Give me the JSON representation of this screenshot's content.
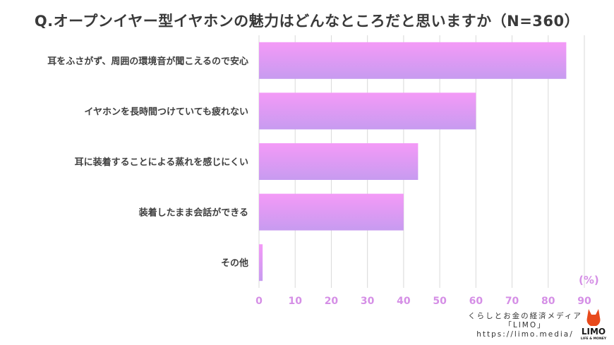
{
  "title": "Q.オープンイヤー型イヤホンの魅力はどんなところだと思いますか（N=360）",
  "unit_label": "(%)",
  "branding": {
    "tagline": "くらしとお金の経済メディア",
    "name_bracket": "「LIMO」",
    "url": "https://limo.media/",
    "logo_text": "LIMO",
    "logo_subtext": "LIFE & MONEY"
  },
  "colors": {
    "bar_top": "#f49af7",
    "bar_bottom": "#c79bf0",
    "tick": "#d58fe6",
    "grid": "#d9d9d9",
    "logo": "#e84a1c"
  },
  "chart_data": {
    "type": "bar",
    "orientation": "horizontal",
    "categories": [
      "耳をふさがず、周囲の環境音が聞こえるので安心",
      "イヤホンを長時間つけていても疲れない",
      "耳に装着することによる蒸れを感じにくい",
      "装着したまま会話ができる",
      "その他"
    ],
    "values": [
      85,
      60,
      44,
      40,
      1
    ],
    "xlim": [
      0,
      90
    ],
    "xticks": [
      0,
      10,
      20,
      30,
      40,
      50,
      60,
      70,
      80,
      90
    ],
    "grid": true
  }
}
